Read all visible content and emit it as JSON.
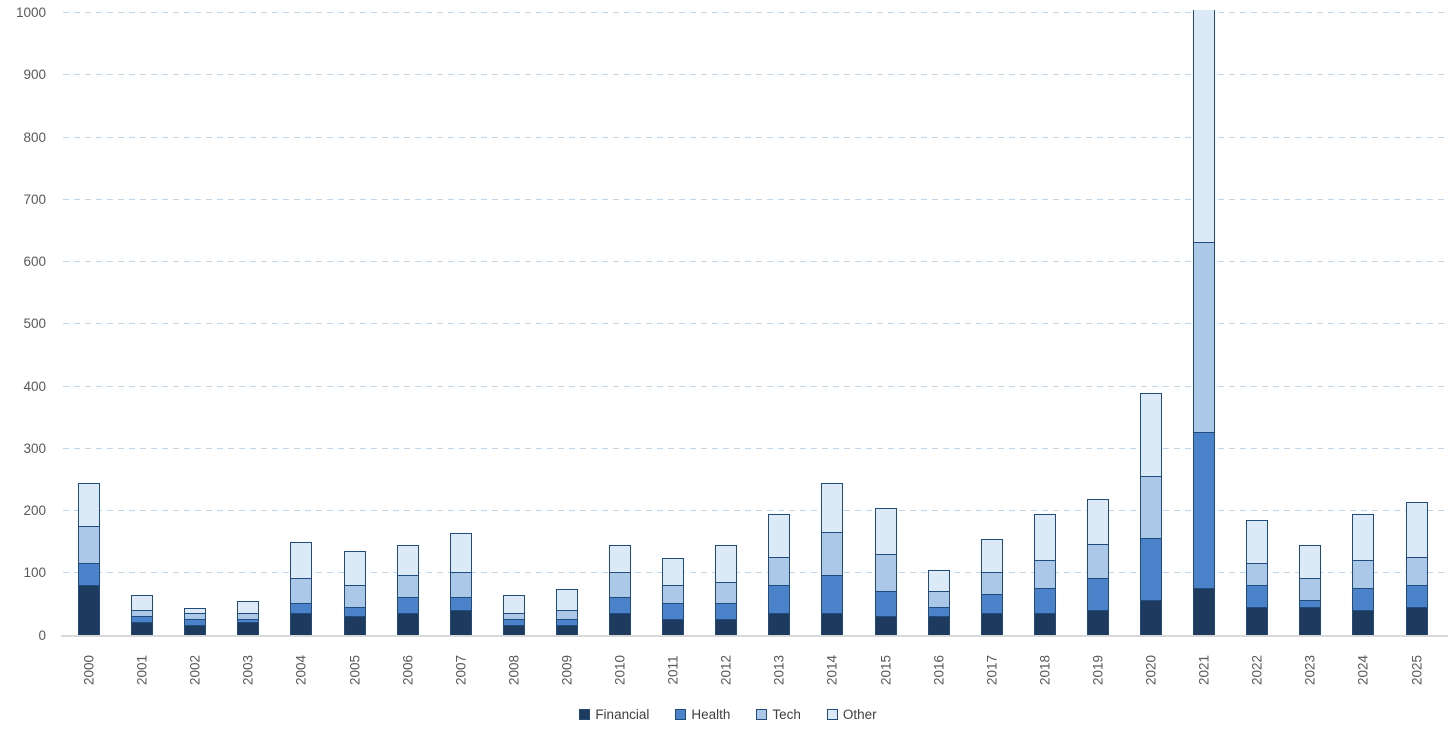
{
  "page": {
    "background": "#FFFFFF"
  },
  "chart_data": {
    "type": "bar",
    "stacked": true,
    "title": "",
    "xlabel": "",
    "ylabel": "",
    "ylim": [
      0,
      1000
    ],
    "y_ticks": [
      0,
      100,
      200,
      300,
      400,
      500,
      600,
      700,
      800,
      900,
      1000
    ],
    "grid": "horizontal-dashed",
    "legend_position": "bottom-center",
    "categories": [
      "2000",
      "2001",
      "2002",
      "2003",
      "2004",
      "2005",
      "2006",
      "2007",
      "2008",
      "2009",
      "2010",
      "2011",
      "2012",
      "2013",
      "2014",
      "2015",
      "2016",
      "2017",
      "2018",
      "2019",
      "2020",
      "2021",
      "2022",
      "2023",
      "2024",
      "2025"
    ],
    "series": [
      {
        "name": "Financial",
        "color": "#1E3A5F",
        "values": [
          80,
          20,
          15,
          20,
          35,
          30,
          35,
          40,
          15,
          15,
          35,
          25,
          25,
          35,
          35,
          30,
          30,
          35,
          35,
          40,
          55,
          75,
          45,
          45,
          40,
          45
        ]
      },
      {
        "name": "Health",
        "color": "#4A83C9",
        "values": [
          35,
          10,
          10,
          5,
          15,
          15,
          25,
          20,
          10,
          10,
          25,
          25,
          25,
          45,
          60,
          40,
          15,
          30,
          40,
          50,
          100,
          250,
          35,
          10,
          35,
          35
        ]
      },
      {
        "name": "Tech",
        "color": "#ABC8E8",
        "values": [
          60,
          10,
          10,
          10,
          40,
          35,
          35,
          40,
          10,
          15,
          40,
          30,
          35,
          45,
          70,
          60,
          25,
          35,
          45,
          55,
          100,
          305,
          35,
          35,
          45,
          45
        ]
      },
      {
        "name": "Other",
        "color": "#DCE9F6",
        "values": [
          70,
          25,
          10,
          20,
          60,
          55,
          50,
          65,
          30,
          35,
          45,
          45,
          60,
          70,
          80,
          75,
          35,
          55,
          75,
          75,
          135,
          370,
          70,
          55,
          75,
          90
        ]
      }
    ],
    "totals": [
      245,
      65,
      45,
      55,
      150,
      135,
      145,
      165,
      65,
      75,
      145,
      125,
      145,
      195,
      245,
      205,
      105,
      155,
      195,
      220,
      390,
      1000,
      185,
      145,
      195,
      215
    ],
    "clipped_categories": [
      "2021"
    ],
    "clipped_note": "2021 bar reaches the 1000 axis maximum and is cut off at the top of the plot",
    "colors": {
      "segment_border": "#1F4C7C",
      "gridline": "#BFD5EA",
      "axis_line": "#D8D8D8",
      "tick_label": "#595959",
      "legend_label": "#3F3F3F"
    }
  }
}
